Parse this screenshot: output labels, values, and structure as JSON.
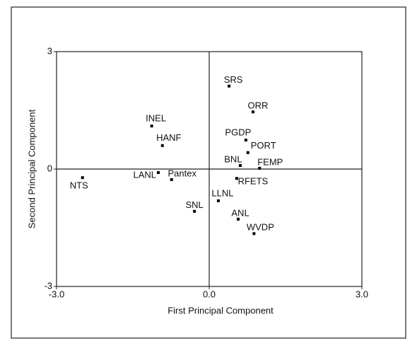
{
  "chart_data": {
    "type": "scatter",
    "x_label": "First Principal Component",
    "y_label": "Second Principal Component",
    "labels": [
      "SRS",
      "ORR",
      "INEL",
      "HANF",
      "PGDP",
      "PORT",
      "BNL",
      "FEMP",
      "LANL",
      "Pantex",
      "NTS",
      "RFETS",
      "LLNL",
      "SNL",
      "ANL",
      "WVDP"
    ],
    "x": [
      0.39,
      0.86,
      -1.13,
      -0.92,
      0.72,
      0.76,
      0.61,
      0.99,
      -1.0,
      -0.74,
      -2.49,
      0.54,
      0.18,
      -0.29,
      0.57,
      0.88
    ],
    "y": [
      2.12,
      1.46,
      1.1,
      0.6,
      0.74,
      0.42,
      0.09,
      0.02,
      -0.09,
      -0.27,
      -0.22,
      -0.24,
      -0.81,
      -1.08,
      -1.28,
      -1.65
    ],
    "color": "#000000",
    "xlim": [
      -3,
      3
    ],
    "ylim": [
      -3,
      3
    ],
    "xticks": [
      {
        "value": -3,
        "label": "-3.0"
      },
      {
        "value": 0,
        "label": "0.0"
      },
      {
        "value": 3,
        "label": "3.0"
      }
    ],
    "yticks": [
      -3,
      0,
      3
    ]
  }
}
